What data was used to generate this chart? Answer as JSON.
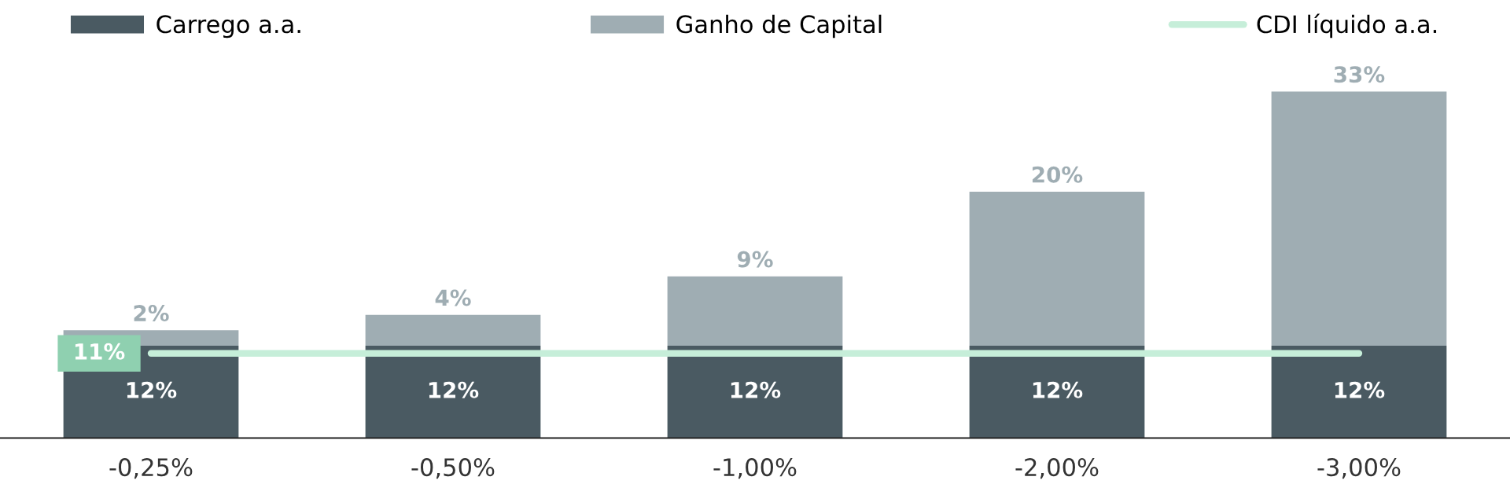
{
  "chart_data": {
    "type": "bar",
    "stacked": true,
    "categories": [
      "-0,25%",
      "-0,50%",
      "-1,00%",
      "-2,00%",
      "-3,00%"
    ],
    "series": [
      {
        "name": "Carrego a.a.",
        "color": "#4a5a62",
        "values": [
          12,
          12,
          12,
          12,
          12
        ],
        "value_labels": [
          "12%",
          "12%",
          "12%",
          "12%",
          "12%"
        ]
      },
      {
        "name": "Ganho de Capital",
        "color": "#9fadb3",
        "values": [
          2,
          4,
          9,
          20,
          33
        ],
        "value_labels": [
          "2%",
          "4%",
          "9%",
          "20%",
          "33%"
        ]
      },
      {
        "name": "CDI líquido a.a.",
        "type": "line",
        "color": "#c6eed9",
        "values": [
          11,
          11,
          11,
          11,
          11
        ],
        "value_labels": [
          "11%",
          null,
          null,
          null,
          null
        ]
      }
    ],
    "legend": "top",
    "grid": false
  }
}
